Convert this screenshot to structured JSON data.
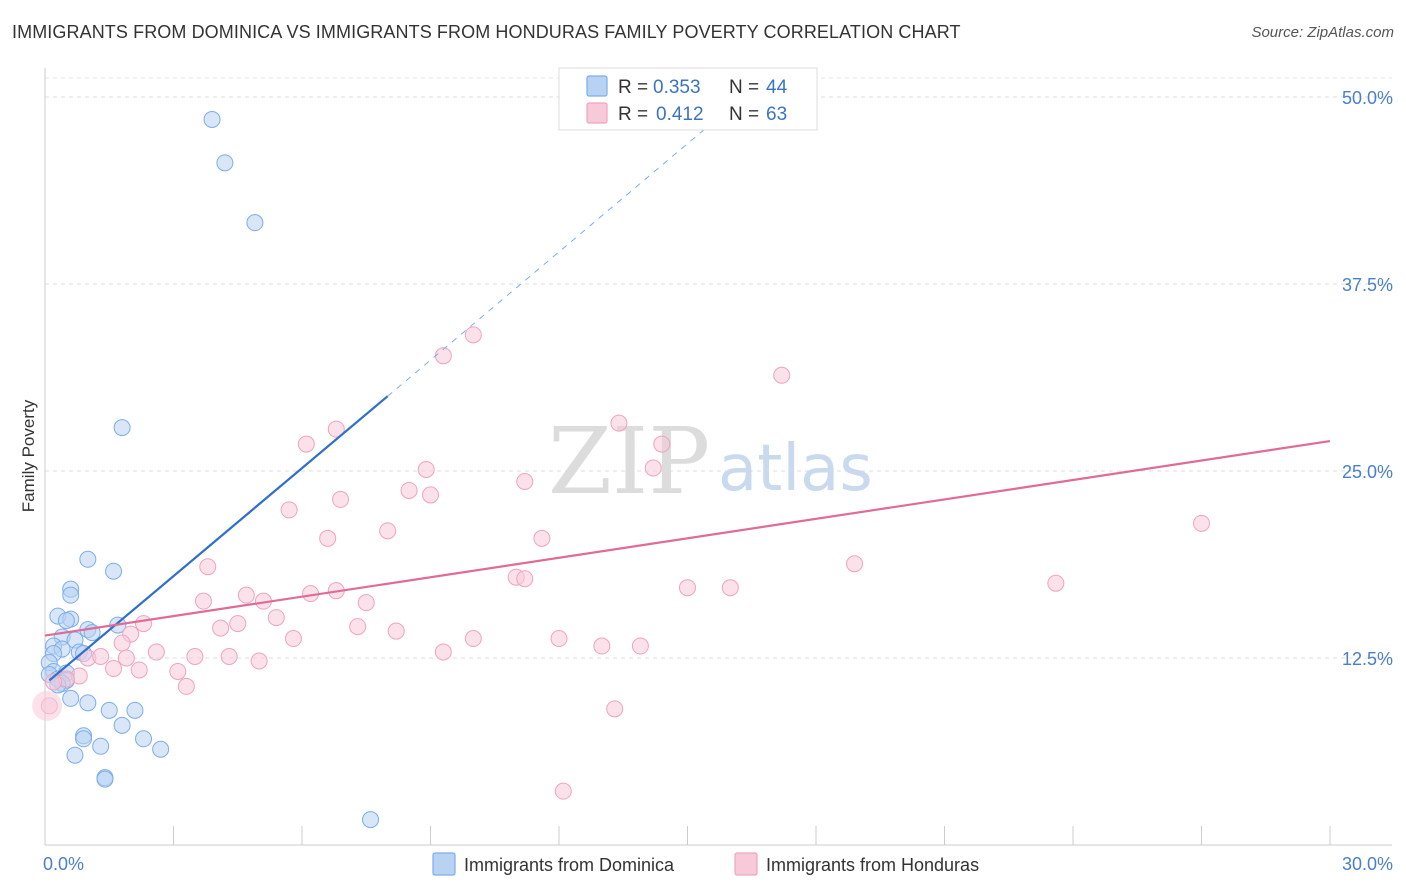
{
  "header": {
    "title": "IMMIGRANTS FROM DOMINICA VS IMMIGRANTS FROM HONDURAS FAMILY POVERTY CORRELATION CHART",
    "source": "Source: ZipAtlas.com"
  },
  "watermark": {
    "zip": "ZIP",
    "atlas": "atlas"
  },
  "chart_data": {
    "type": "scatter",
    "title": "IMMIGRANTS FROM DOMINICA VS IMMIGRANTS FROM HONDURAS FAMILY POVERTY CORRELATION CHART",
    "xlabel": "",
    "ylabel": "Family Poverty",
    "xlim": [
      0,
      30
    ],
    "ylim": [
      0,
      50
    ],
    "y_ticks": [
      {
        "value": 12.5,
        "label": "12.5%"
      },
      {
        "value": 25.0,
        "label": "25.0%"
      },
      {
        "value": 37.5,
        "label": "37.5%"
      },
      {
        "value": 50.0,
        "label": "50.0%"
      }
    ],
    "x_ticks": [
      {
        "value": 0,
        "label": "0.0%"
      },
      {
        "value": 30,
        "label": "30.0%"
      }
    ],
    "x_minor_ticks": [
      0,
      3,
      6,
      9,
      12,
      15,
      18,
      21,
      24,
      27,
      30
    ],
    "legend": {
      "entries": [
        {
          "r_label": "R = ",
          "r_value": "0.353",
          "n_label": "N = ",
          "n_value": "44"
        },
        {
          "r_label": "R = ",
          "r_value": "0.412",
          "n_label": "N = ",
          "n_value": "63"
        }
      ]
    },
    "series": [
      {
        "name": "Immigrants from Dominica",
        "color": "#7baee8",
        "fill": "#b8d2f3",
        "line_color": "#2f6fcc",
        "trend": {
          "x0": 0.1,
          "y0": 11.0,
          "x1": 8.0,
          "y1": 30.0,
          "dash_to_x": 16.5,
          "dash_to_y": 50.5
        },
        "points": [
          [
            3.9,
            48.5
          ],
          [
            4.2,
            45.6
          ],
          [
            4.9,
            41.6
          ],
          [
            1.8,
            27.9
          ],
          [
            1.0,
            19.1
          ],
          [
            1.6,
            18.3
          ],
          [
            0.6,
            17.1
          ],
          [
            0.6,
            16.7
          ],
          [
            0.3,
            15.3
          ],
          [
            0.6,
            15.1
          ],
          [
            0.5,
            15.0
          ],
          [
            1.7,
            14.7
          ],
          [
            1.0,
            14.4
          ],
          [
            1.1,
            14.2
          ],
          [
            0.4,
            13.9
          ],
          [
            0.7,
            13.7
          ],
          [
            0.8,
            12.9
          ],
          [
            0.9,
            12.8
          ],
          [
            0.2,
            13.3
          ],
          [
            0.4,
            13.1
          ],
          [
            0.2,
            12.8
          ],
          [
            0.1,
            12.2
          ],
          [
            0.2,
            11.6
          ],
          [
            0.5,
            11.5
          ],
          [
            0.1,
            11.4
          ],
          [
            0.3,
            11.1
          ],
          [
            0.5,
            11.0
          ],
          [
            0.4,
            10.8
          ],
          [
            0.3,
            10.7
          ],
          [
            0.6,
            9.8
          ],
          [
            1.0,
            9.5
          ],
          [
            1.5,
            9.0
          ],
          [
            2.1,
            9.0
          ],
          [
            1.8,
            8.0
          ],
          [
            0.9,
            7.3
          ],
          [
            0.9,
            7.1
          ],
          [
            2.3,
            7.1
          ],
          [
            1.3,
            6.6
          ],
          [
            2.7,
            6.4
          ],
          [
            0.7,
            6.0
          ],
          [
            1.4,
            4.5
          ],
          [
            1.4,
            4.4
          ],
          [
            7.6,
            1.7
          ]
        ]
      },
      {
        "name": "Immigrants from Honduras",
        "color": "#f0a3bd",
        "fill": "#f8cad9",
        "line_color": "#e06b95",
        "trend": {
          "x0": 0.0,
          "y0": 14.0,
          "x1": 30.0,
          "y1": 27.0
        },
        "points": [
          [
            10.0,
            34.1
          ],
          [
            9.3,
            32.7
          ],
          [
            17.2,
            31.4
          ],
          [
            13.4,
            28.2
          ],
          [
            6.8,
            27.8
          ],
          [
            6.1,
            26.8
          ],
          [
            14.4,
            26.8
          ],
          [
            8.9,
            25.1
          ],
          [
            14.2,
            25.2
          ],
          [
            11.2,
            24.3
          ],
          [
            8.5,
            23.7
          ],
          [
            9.0,
            23.4
          ],
          [
            6.9,
            23.1
          ],
          [
            5.7,
            22.4
          ],
          [
            27.0,
            21.5
          ],
          [
            8.0,
            21.0
          ],
          [
            6.6,
            20.5
          ],
          [
            11.6,
            20.5
          ],
          [
            3.8,
            18.6
          ],
          [
            18.9,
            18.8
          ],
          [
            11.0,
            17.9
          ],
          [
            11.2,
            17.8
          ],
          [
            23.6,
            17.5
          ],
          [
            15.0,
            17.2
          ],
          [
            16.0,
            17.2
          ],
          [
            6.8,
            17.0
          ],
          [
            6.2,
            16.8
          ],
          [
            4.7,
            16.7
          ],
          [
            3.7,
            16.3
          ],
          [
            5.1,
            16.3
          ],
          [
            7.5,
            16.2
          ],
          [
            5.4,
            15.2
          ],
          [
            2.3,
            14.8
          ],
          [
            4.5,
            14.8
          ],
          [
            4.1,
            14.5
          ],
          [
            7.3,
            14.6
          ],
          [
            8.2,
            14.3
          ],
          [
            2.0,
            14.1
          ],
          [
            10.0,
            13.8
          ],
          [
            12.0,
            13.8
          ],
          [
            5.8,
            13.8
          ],
          [
            1.8,
            13.5
          ],
          [
            13.0,
            13.3
          ],
          [
            13.9,
            13.3
          ],
          [
            2.6,
            12.9
          ],
          [
            9.3,
            12.9
          ],
          [
            3.5,
            12.6
          ],
          [
            4.3,
            12.6
          ],
          [
            1.0,
            12.5
          ],
          [
            1.3,
            12.6
          ],
          [
            1.9,
            12.5
          ],
          [
            5.0,
            12.3
          ],
          [
            1.6,
            11.8
          ],
          [
            2.2,
            11.7
          ],
          [
            3.1,
            11.6
          ],
          [
            0.8,
            11.3
          ],
          [
            0.5,
            11.1
          ],
          [
            0.2,
            10.9
          ],
          [
            3.3,
            10.6
          ],
          [
            0.1,
            9.3
          ],
          [
            13.3,
            9.1
          ],
          [
            12.1,
            3.6
          ]
        ]
      }
    ]
  }
}
